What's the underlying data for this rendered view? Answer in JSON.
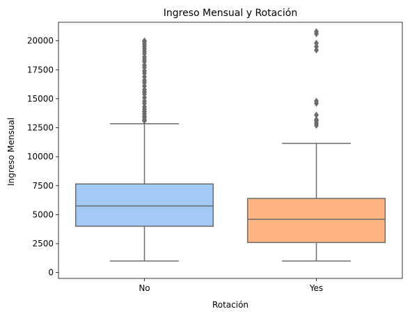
{
  "chart_data": {
    "type": "box",
    "title": "Ingreso Mensual y Rotación",
    "xlabel": "Rotación",
    "ylabel": "Ingreso Mensual",
    "categories": [
      "No",
      "Yes"
    ],
    "ylim": [
      -500,
      21600
    ],
    "yticks": [
      0,
      2500,
      5000,
      7500,
      10000,
      12500,
      15000,
      17500,
      20000
    ],
    "ytick_labels": [
      "0",
      "2500",
      "5000",
      "7500",
      "10000",
      "12500",
      "15000",
      "17500",
      "20000"
    ],
    "grid": false,
    "legend": "none",
    "boxes": [
      {
        "category": "No",
        "color": "#a1c9f4",
        "whisker_low": 1000,
        "q1": 4000,
        "median": 5750,
        "q3": 7650,
        "whisker_high": 12850,
        "outliers": [
          13100,
          13200,
          13400,
          13500,
          13700,
          13900,
          14100,
          14300,
          14600,
          14800,
          15100,
          15400,
          15600,
          15800,
          16100,
          16400,
          16600,
          16900,
          17200,
          17400,
          17700,
          17900,
          18200,
          18400,
          18600,
          18900,
          19100,
          19300,
          19500,
          19700,
          19900,
          20000
        ]
      },
      {
        "category": "Yes",
        "color": "#ffb482",
        "whisker_low": 1000,
        "q1": 2600,
        "median": 4600,
        "q3": 6400,
        "whisker_high": 11150,
        "outliers": [
          12700,
          12900,
          13100,
          13200,
          13600,
          14600,
          14800,
          19200,
          19500,
          19800,
          20600,
          20800
        ]
      }
    ]
  }
}
